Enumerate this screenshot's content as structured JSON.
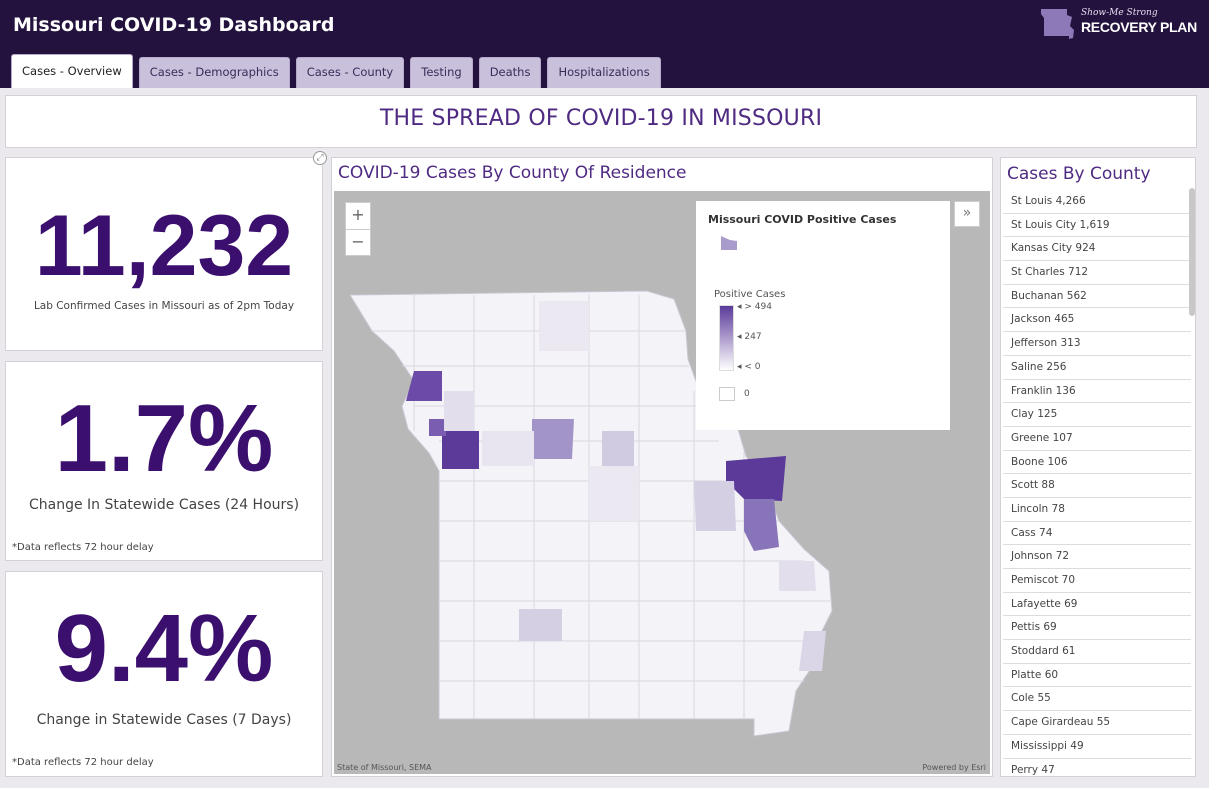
{
  "header": {
    "title": "Missouri COVID-19 Dashboard",
    "logo_script": "Show-Me Strong",
    "logo_main": "RECOVERY PLAN"
  },
  "tabs": [
    {
      "label": "Cases - Overview",
      "active": true
    },
    {
      "label": "Cases - Demographics",
      "active": false
    },
    {
      "label": "Cases - County",
      "active": false
    },
    {
      "label": "Testing",
      "active": false
    },
    {
      "label": "Deaths",
      "active": false
    },
    {
      "label": "Hospitalizations",
      "active": false
    }
  ],
  "banner": {
    "title": "THE SPREAD OF COVID-19 IN MISSOURI"
  },
  "stats": {
    "total": {
      "value": "11,232",
      "label": "Lab Confirmed Cases in Missouri as of 2pm Today"
    },
    "day": {
      "value": "1.7%",
      "label": "Change In Statewide Cases (24 Hours)",
      "note": "*Data reflects 72 hour delay"
    },
    "week": {
      "value": "9.4%",
      "label": "Change in Statewide Cases (7 Days)",
      "note": "*Data reflects 72 hour delay"
    }
  },
  "map": {
    "title": "COVID-19 Cases By County Of Residence",
    "zoom_in": "+",
    "zoom_out": "−",
    "legend": {
      "title": "Missouri COVID Positive Cases",
      "subtitle": "Positive Cases",
      "ticks": [
        "> 494",
        "247",
        "< 0"
      ],
      "zero": "0",
      "toggle": "»"
    },
    "attribution_left": "State of Missouri, SEMA",
    "attribution_right": "Powered by Esri",
    "colors": {
      "high": "#5b3a9a",
      "mid": "#9f8cc6",
      "low": "#d9d4e6",
      "none": "#f4f3f7",
      "background": "#b8b8b8"
    }
  },
  "county_list": {
    "title": "Cases By County",
    "items": [
      "St Louis 4,266",
      "St Louis City 1,619",
      "Kansas City 924",
      "St Charles 712",
      "Buchanan 562",
      "Jackson 465",
      "Jefferson 313",
      "Saline 256",
      "Franklin 136",
      "Clay 125",
      "Greene 107",
      "Boone 106",
      "Scott 88",
      "Lincoln 78",
      "Cass 74",
      "Johnson 72",
      "Pemiscot 70",
      "Lafayette 69",
      "Pettis 69",
      "Stoddard 61",
      "Platte 60",
      "Cole 55",
      "Cape Girardeau 55",
      "Mississippi 49",
      "Perry 47"
    ]
  }
}
